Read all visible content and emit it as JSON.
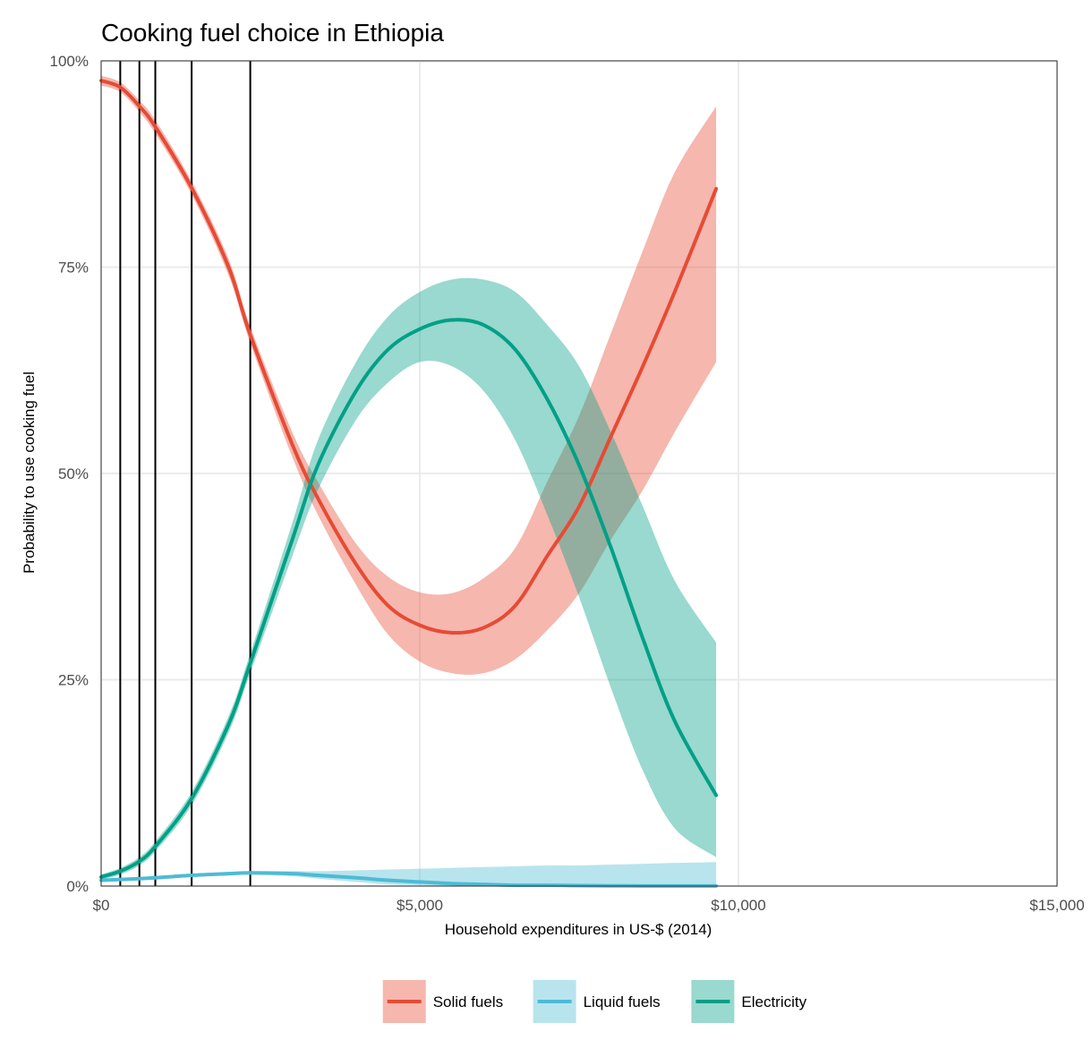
{
  "chart_data": {
    "type": "line",
    "title": "Cooking fuel choice in Ethiopia",
    "xlabel": "Household expenditures in US-$ (2014)",
    "ylabel": "Probability to use cooking fuel",
    "xlim": [
      0,
      15000
    ],
    "ylim": [
      0,
      1
    ],
    "x_ticks": [
      0,
      5000,
      10000,
      15000
    ],
    "x_tick_labels": [
      "$0",
      "$5,000",
      "$10,000",
      "$15,000"
    ],
    "y_ticks": [
      0,
      0.25,
      0.5,
      0.75,
      1
    ],
    "y_tick_labels": [
      "0%",
      "25%",
      "50%",
      "75%",
      "100%"
    ],
    "grid": true,
    "legend_position": "bottom",
    "vertical_lines": [
      300,
      600,
      850,
      1420,
      2340
    ],
    "x": [
      0,
      300,
      600,
      850,
      1420,
      2000,
      2340,
      3000,
      3400,
      4000,
      4500,
      5000,
      5500,
      6000,
      6500,
      7000,
      7500,
      8000,
      8500,
      9000,
      9650
    ],
    "series": [
      {
        "name": "Solid fuels",
        "color": "#E64B35",
        "values": [
          0.976,
          0.968,
          0.945,
          0.92,
          0.846,
          0.75,
          0.668,
          0.535,
          0.47,
          0.39,
          0.34,
          0.316,
          0.307,
          0.313,
          0.34,
          0.4,
          0.46,
          0.545,
          0.63,
          0.72,
          0.845
        ],
        "lower": [
          0.97,
          0.962,
          0.938,
          0.912,
          0.838,
          0.74,
          0.658,
          0.52,
          0.45,
          0.365,
          0.305,
          0.272,
          0.258,
          0.258,
          0.275,
          0.31,
          0.355,
          0.42,
          0.48,
          0.55,
          0.635
        ],
        "upper": [
          0.982,
          0.974,
          0.952,
          0.928,
          0.854,
          0.76,
          0.678,
          0.55,
          0.49,
          0.415,
          0.375,
          0.356,
          0.355,
          0.373,
          0.41,
          0.49,
          0.57,
          0.67,
          0.77,
          0.865,
          0.945
        ]
      },
      {
        "name": "Liquid fuels",
        "color": "#4DBBD5",
        "values": [
          0.007,
          0.008,
          0.009,
          0.01,
          0.013,
          0.015,
          0.016,
          0.015,
          0.013,
          0.01,
          0.007,
          0.005,
          0.003,
          0.002,
          0.001,
          0.001,
          0.0005,
          0.0003,
          0.0002,
          0.0001,
          0.0001
        ],
        "lower": [
          0.005,
          0.006,
          0.007,
          0.008,
          0.011,
          0.013,
          0.014,
          0.012,
          0.009,
          0.005,
          0.002,
          0.001,
          0.0,
          0.0,
          0.0,
          0.0,
          0.0,
          0.0,
          0.0,
          0.0,
          0.0
        ],
        "upper": [
          0.009,
          0.01,
          0.011,
          0.012,
          0.015,
          0.017,
          0.018,
          0.018,
          0.018,
          0.019,
          0.02,
          0.021,
          0.022,
          0.023,
          0.024,
          0.025,
          0.025,
          0.026,
          0.027,
          0.028,
          0.029
        ]
      },
      {
        "name": "Electricity",
        "color": "#00A087",
        "values": [
          0.011,
          0.018,
          0.03,
          0.048,
          0.106,
          0.196,
          0.27,
          0.42,
          0.51,
          0.6,
          0.65,
          0.675,
          0.686,
          0.68,
          0.65,
          0.59,
          0.51,
          0.41,
          0.3,
          0.2,
          0.11
        ],
        "lower": [
          0.008,
          0.014,
          0.025,
          0.042,
          0.098,
          0.186,
          0.258,
          0.4,
          0.48,
          0.565,
          0.61,
          0.635,
          0.63,
          0.6,
          0.54,
          0.45,
          0.35,
          0.24,
          0.14,
          0.07,
          0.035
        ],
        "upper": [
          0.014,
          0.022,
          0.035,
          0.054,
          0.114,
          0.206,
          0.282,
          0.44,
          0.54,
          0.635,
          0.69,
          0.72,
          0.735,
          0.735,
          0.72,
          0.68,
          0.63,
          0.55,
          0.46,
          0.37,
          0.295
        ]
      }
    ]
  }
}
